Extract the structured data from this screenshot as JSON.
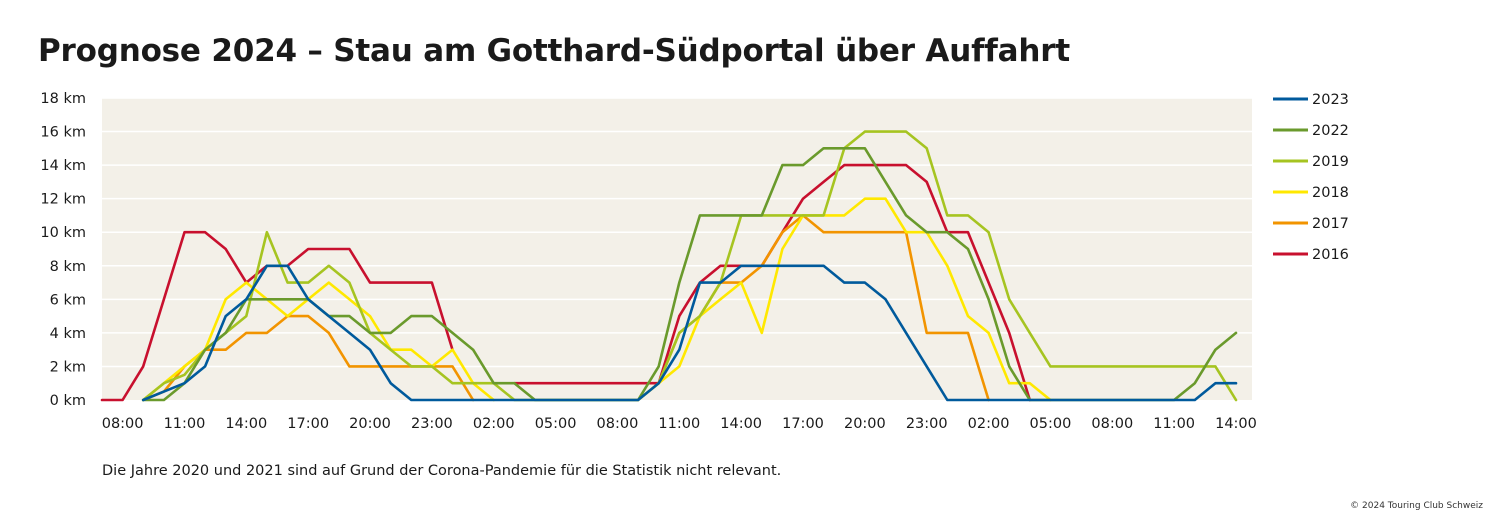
{
  "title": "Prognose 2024 – Stau am Gotthard-Südportal über Auffahrt",
  "footnote": "Die Jahre 2020 und 2021 sind auf Grund der Corona-Pandemie für die Statistik nicht relevant.",
  "copyright": "© 2024 Touring Club Schweiz",
  "colors": {
    "plot_background": "#f3f0e8",
    "gridline": "#ffffff"
  },
  "chart_data": {
    "type": "line",
    "title": "Prognose 2024 – Stau am Gotthard-Südportal über Auffahrt",
    "xlabel": "",
    "ylabel": "",
    "ylim": [
      0,
      18
    ],
    "xlim": [
      0,
      55
    ],
    "grid": true,
    "legend_position": "right",
    "x": [
      0,
      1,
      2,
      3,
      4,
      5,
      6,
      7,
      8,
      9,
      10,
      11,
      12,
      13,
      14,
      15,
      16,
      17,
      18,
      19,
      20,
      21,
      22,
      23,
      24,
      25,
      26,
      27,
      28,
      29,
      30,
      31,
      32,
      33,
      34,
      35,
      36,
      37,
      38,
      39,
      40,
      41,
      42,
      43,
      44,
      45,
      46,
      47,
      48,
      49,
      50,
      51,
      52,
      53,
      54,
      55
    ],
    "x_tick_positions": [
      1,
      4,
      7,
      10,
      13,
      16,
      19,
      22,
      25,
      28,
      31,
      34,
      37,
      40,
      43,
      46,
      49,
      52,
      55
    ],
    "x_tick_labels": [
      "08:00",
      "11:00",
      "14:00",
      "17:00",
      "20:00",
      "23:00",
      "02:00",
      "05:00",
      "08:00",
      "11:00",
      "14:00",
      "17:00",
      "20:00",
      "23:00",
      "02:00",
      "05:00",
      "08:00",
      "11:00",
      "14:00"
    ],
    "y_ticks": [
      0,
      2,
      4,
      6,
      8,
      10,
      12,
      14,
      16,
      18
    ],
    "y_tick_labels": [
      "0 km",
      "2 km",
      "4 km",
      "6 km",
      "8 km",
      "10 km",
      "12 km",
      "14 km",
      "16 km",
      "18 km"
    ],
    "series": [
      {
        "name": "2023",
        "color": "#005a9c",
        "values": [
          null,
          null,
          0,
          0.5,
          1,
          2,
          5,
          6,
          8,
          8,
          6,
          5,
          4,
          3,
          1,
          0,
          0,
          0,
          0,
          0,
          0,
          0,
          0,
          0,
          0,
          0,
          0,
          1,
          3,
          7,
          7,
          8,
          8,
          8,
          8,
          8,
          7,
          7,
          6,
          4,
          2,
          0,
          0,
          0,
          0,
          0,
          0,
          0,
          0,
          0,
          0,
          0,
          0,
          0,
          1,
          1
        ]
      },
      {
        "name": "2022",
        "color": "#6a9a2c",
        "values": [
          null,
          null,
          0,
          0,
          1,
          3,
          4,
          6,
          6,
          6,
          6,
          5,
          5,
          4,
          4,
          5,
          5,
          4,
          3,
          1,
          1,
          0,
          0,
          0,
          0,
          0,
          0,
          2,
          7,
          11,
          11,
          11,
          11,
          14,
          14,
          15,
          15,
          15,
          13,
          11,
          10,
          10,
          9,
          6,
          2,
          0,
          0,
          0,
          0,
          0,
          0,
          0,
          0,
          1,
          3,
          4
        ]
      },
      {
        "name": "2019",
        "color": "#a6c421",
        "values": [
          null,
          null,
          0,
          1,
          1.5,
          3,
          4,
          5,
          10,
          7,
          7,
          8,
          7,
          4,
          3,
          2,
          2,
          1,
          1,
          1,
          0,
          0,
          0,
          0,
          0,
          0,
          0,
          1,
          4,
          5,
          7,
          11,
          11,
          11,
          11,
          11,
          15,
          16,
          16,
          16,
          15,
          11,
          11,
          10,
          6,
          4,
          2,
          2,
          2,
          2,
          2,
          2,
          2,
          2,
          2,
          0
        ]
      },
      {
        "name": "2018",
        "color": "#ffe800",
        "values": [
          null,
          null,
          0,
          1,
          2,
          3,
          6,
          7,
          6,
          5,
          6,
          7,
          6,
          5,
          3,
          3,
          2,
          3,
          1,
          0,
          null,
          null,
          null,
          null,
          null,
          null,
          0,
          1,
          2,
          5,
          6,
          7,
          4,
          9,
          11,
          11,
          11,
          12,
          12,
          10,
          10,
          8,
          5,
          4,
          1,
          1,
          0,
          null,
          null,
          null,
          null,
          null,
          null,
          null,
          null,
          null
        ]
      },
      {
        "name": "2017",
        "color": "#f29400",
        "values": [
          null,
          null,
          0,
          0.5,
          2,
          3,
          3,
          4,
          4,
          5,
          5,
          4,
          2,
          2,
          2,
          2,
          2,
          2,
          0,
          null,
          null,
          null,
          null,
          null,
          null,
          null,
          null,
          1,
          4,
          5,
          7,
          7,
          8,
          10,
          11,
          10,
          10,
          10,
          10,
          10,
          4,
          4,
          4,
          0,
          null,
          null,
          null,
          null,
          null,
          null,
          null,
          null,
          null,
          null,
          null,
          null
        ]
      },
      {
        "name": "2016",
        "color": "#c8102e",
        "values": [
          0,
          0,
          2,
          6,
          10,
          10,
          9,
          7,
          8,
          8,
          9,
          9,
          9,
          7,
          7,
          7,
          7,
          3,
          null,
          null,
          1,
          1,
          1,
          1,
          1,
          1,
          1,
          1,
          5,
          7,
          8,
          8,
          8,
          10,
          12,
          13,
          14,
          14,
          14,
          14,
          13,
          10,
          10,
          7,
          4,
          0,
          null,
          null,
          null,
          null,
          null,
          null,
          null,
          null,
          null,
          null
        ]
      }
    ]
  }
}
